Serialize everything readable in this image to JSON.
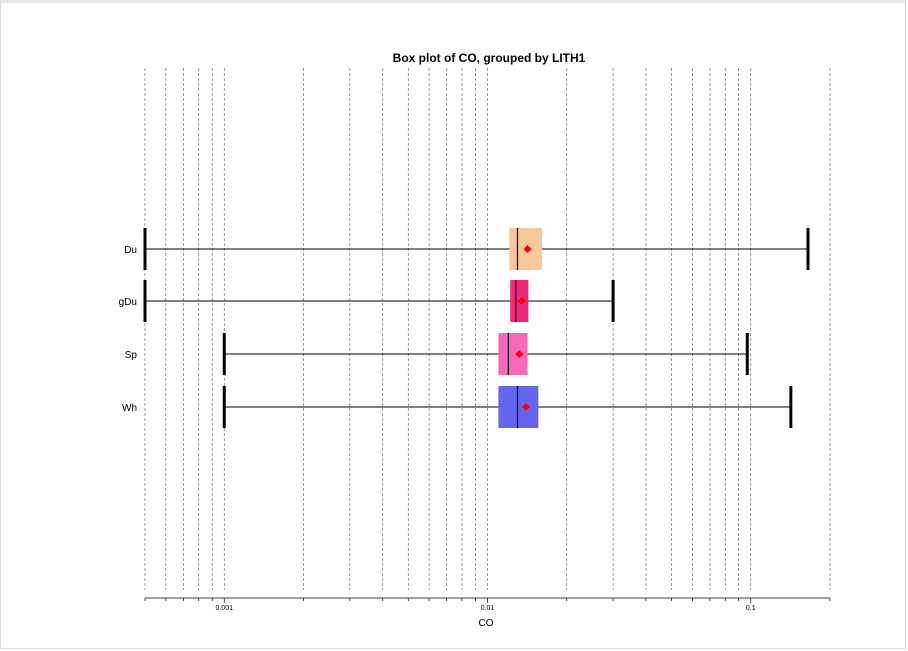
{
  "chart_data": {
    "type": "boxplot",
    "title": "Box plot of CO, grouped by LITH1",
    "xlabel": "CO",
    "ylabel": "",
    "xscale": "log",
    "xlim": [
      0.0005,
      0.2
    ],
    "grid": true,
    "tick_labels": [
      {
        "value": 0.001,
        "label": "0.001"
      },
      {
        "value": 0.01,
        "label": "0.01"
      },
      {
        "value": 0.1,
        "label": "0.1"
      }
    ],
    "categories": [
      "Du",
      "gDu",
      "Sp",
      "Wh"
    ],
    "series": [
      {
        "category": "Du",
        "min": 0.0005,
        "q1": 0.0121,
        "median": 0.013,
        "q3": 0.0161,
        "max": 0.165,
        "mean": 0.0142,
        "color": "#f8c89a"
      },
      {
        "category": "gDu",
        "min": 0.0005,
        "q1": 0.0122,
        "median": 0.0128,
        "q3": 0.0143,
        "max": 0.03,
        "mean": 0.0135,
        "color": "#f0287d"
      },
      {
        "category": "Sp",
        "min": 0.001,
        "q1": 0.011,
        "median": 0.012,
        "q3": 0.0142,
        "max": 0.097,
        "mean": 0.0132,
        "color": "#f768b8"
      },
      {
        "category": "Wh",
        "min": 0.001,
        "q1": 0.011,
        "median": 0.013,
        "q3": 0.0156,
        "max": 0.142,
        "mean": 0.014,
        "color": "#6464f0"
      }
    ],
    "mean_marker_color": "#ff0000"
  }
}
